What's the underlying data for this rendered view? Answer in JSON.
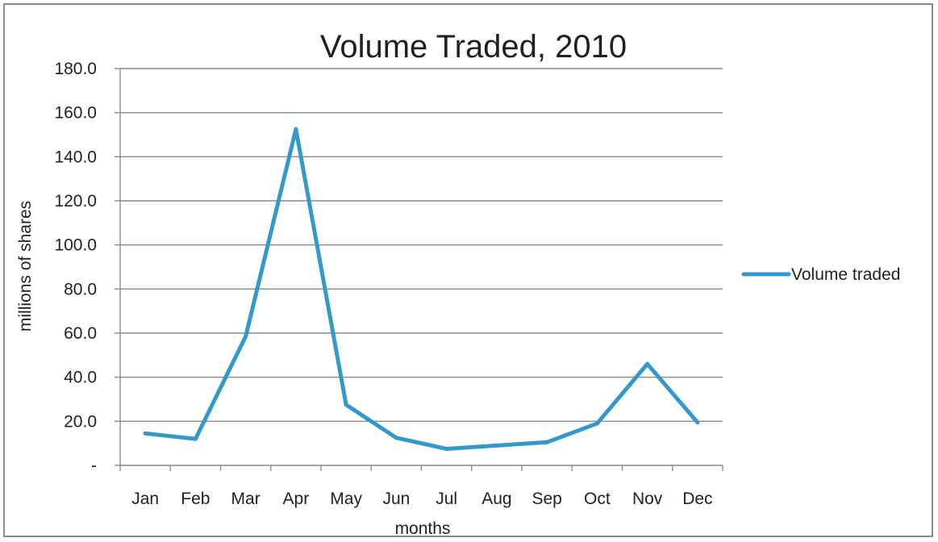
{
  "chart_data": {
    "type": "line",
    "title": "Volume Traded,  2010",
    "xlabel": "months",
    "ylabel": "millions of shares",
    "categories": [
      "Jan",
      "Feb",
      "Mar",
      "Apr",
      "May",
      "Jun",
      "Jul",
      "Aug",
      "Sep",
      "Oct",
      "Nov",
      "Dec"
    ],
    "series": [
      {
        "name": "Volume traded",
        "values": [
          14.5,
          12.0,
          58.5,
          152.5,
          27.5,
          12.5,
          7.5,
          9.0,
          10.5,
          19.0,
          46.0,
          19.5
        ],
        "color": "#3399cc"
      }
    ],
    "ylim": [
      0,
      180
    ],
    "yticks": [
      0,
      20,
      40,
      60,
      80,
      100,
      120,
      140,
      160,
      180
    ],
    "ytick_labels": [
      "-",
      "20.0",
      "40.0",
      "60.0",
      "80.0",
      "100.0",
      "120.0",
      "140.0",
      "160.0",
      "180.0"
    ],
    "grid": true,
    "legend_position": "right"
  }
}
